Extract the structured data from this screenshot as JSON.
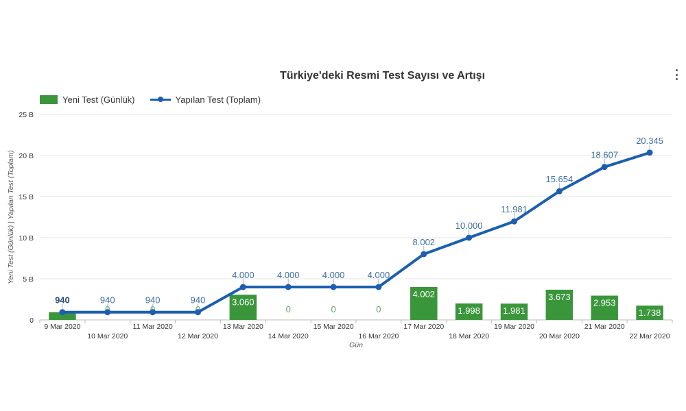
{
  "chart_data": {
    "type": "bar+line",
    "title": "Türkiye'deki Resmi Test Sayısı ve Artışı",
    "xlabel": "Gün",
    "ylabel": "Yeni Test (Günlük) | Yapılan Test (Toplam)",
    "ylim": [
      0,
      25000
    ],
    "y_ticks": [
      "0",
      "5 B",
      "10 B",
      "15 B",
      "20 B",
      "25 B"
    ],
    "grid": true,
    "legend_position": "top-left",
    "categories": [
      "9 Mar 2020",
      "10 Mar 2020",
      "11 Mar 2020",
      "12 Mar 2020",
      "13 Mar 2020",
      "14 Mar 2020",
      "15 Mar 2020",
      "16 Mar 2020",
      "17 Mar 2020",
      "18 Mar 2020",
      "19 Mar 2020",
      "20 Mar 2020",
      "21 Mar 2020",
      "22 Mar 2020"
    ],
    "series": [
      {
        "name": "Yeni Test (Günlük)",
        "type": "bar",
        "color": "#3a963a",
        "values": [
          940,
          0,
          0,
          0,
          3060,
          0,
          0,
          0,
          4002,
          1998,
          1981,
          3673,
          2953,
          1738
        ],
        "labels": [
          "940",
          "0",
          "0",
          "0",
          "3.060",
          "0",
          "0",
          "0",
          "4.002",
          "1.998",
          "1.981",
          "3.673",
          "2.953",
          "1.738"
        ]
      },
      {
        "name": "Yapılan Test (Toplam)",
        "type": "line",
        "color": "#1c5fb0",
        "values": [
          940,
          940,
          940,
          940,
          4000,
          4000,
          4000,
          4000,
          8002,
          10000,
          11981,
          15654,
          18607,
          20345
        ],
        "labels": [
          "940",
          "940",
          "940",
          "940",
          "4.000",
          "4.000",
          "4.000",
          "4.000",
          "8.002",
          "10.000",
          "11.981",
          "15.654",
          "18.607",
          "20.345"
        ]
      }
    ]
  },
  "menu": {
    "icon": "more-vertical-icon"
  }
}
